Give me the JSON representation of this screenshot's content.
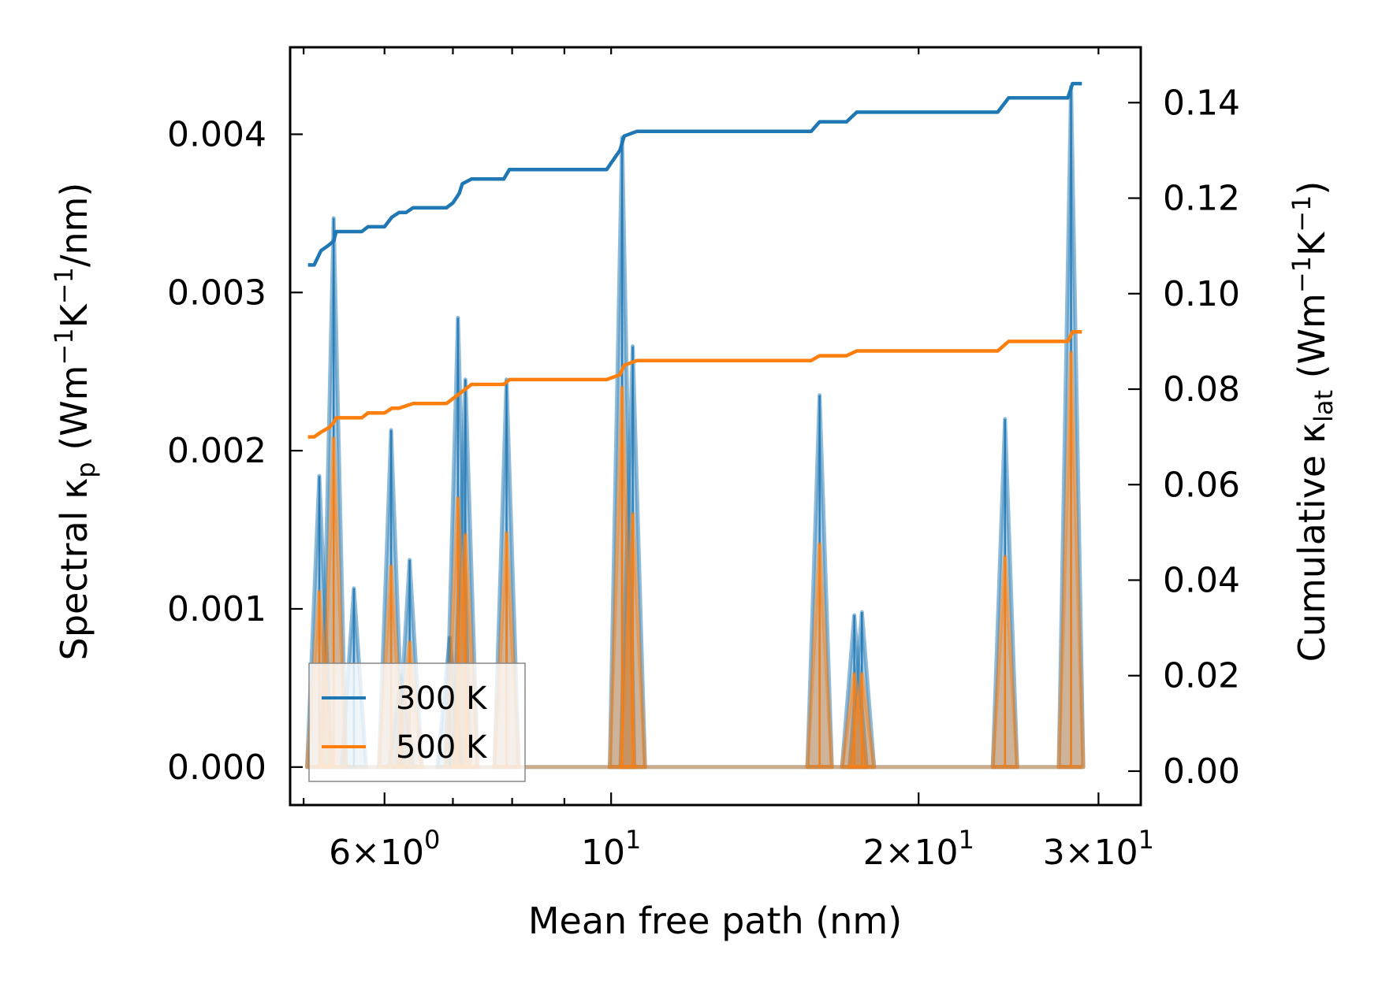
{
  "chart_data": {
    "type": "line",
    "xlabel": "Mean free path (nm)",
    "x_scale": "log",
    "xlim": [
      4.85,
      33.0
    ],
    "ylabel_left": {
      "prefix": "Spectral κ",
      "sub": "p",
      "rest": " (Wm",
      "sup1": "−1",
      "mid": "K",
      "sup2": "−1",
      "end": "/nm)"
    },
    "ylabel_right": {
      "prefix": "Cumulative κ",
      "sub": "lat",
      "rest": " (Wm",
      "sup1": "−1",
      "mid": "K",
      "sup2": "−1",
      "end": ")"
    },
    "ylim_left": [
      -0.00024,
      0.00455
    ],
    "ylim_right": [
      -0.0071,
      0.1516
    ],
    "x_tick_labels": [
      {
        "x": 6,
        "coef": "6",
        "times": "×",
        "base": "10",
        "exp": "0"
      },
      {
        "x": 10,
        "coef": "",
        "times": "",
        "base": "10",
        "exp": "1"
      },
      {
        "x": 20,
        "coef": "2",
        "times": "×",
        "base": "10",
        "exp": "1"
      },
      {
        "x": 30,
        "coef": "3",
        "times": "×",
        "base": "10",
        "exp": "1"
      }
    ],
    "x_minor_ticks": [
      5,
      7,
      8,
      9
    ],
    "x_top_ticks": [
      5,
      6,
      7,
      8,
      9,
      10,
      20,
      30
    ],
    "y_left_ticks": [
      {
        "v": 0.0,
        "label": "0.000"
      },
      {
        "v": 0.001,
        "label": "0.001"
      },
      {
        "v": 0.002,
        "label": "0.002"
      },
      {
        "v": 0.003,
        "label": "0.003"
      },
      {
        "v": 0.004,
        "label": "0.004"
      }
    ],
    "y_right_ticks": [
      {
        "v": 0.0,
        "label": "0.00"
      },
      {
        "v": 0.02,
        "label": "0.02"
      },
      {
        "v": 0.04,
        "label": "0.04"
      },
      {
        "v": 0.06,
        "label": "0.06"
      },
      {
        "v": 0.08,
        "label": "0.08"
      },
      {
        "v": 0.1,
        "label": "0.10"
      },
      {
        "v": 0.12,
        "label": "0.12"
      },
      {
        "v": 0.14,
        "label": "0.14"
      }
    ],
    "legend": {
      "placement": "lower-left",
      "entries": [
        "300 K",
        "500 K"
      ]
    },
    "series": [
      {
        "name": "300 K",
        "color": "#1f77b4",
        "spectral": [
          [
            5.18,
            0.00184
          ],
          [
            5.35,
            0.00347
          ],
          [
            5.6,
            0.00113
          ],
          [
            6.09,
            0.00213
          ],
          [
            6.23,
            0.00058
          ],
          [
            6.35,
            0.00131
          ],
          [
            6.95,
            0.00082
          ],
          [
            7.08,
            0.00284
          ],
          [
            7.2,
            0.00245
          ],
          [
            7.9,
            0.00245
          ],
          [
            10.25,
            0.00398
          ],
          [
            10.5,
            0.00266
          ],
          [
            16.0,
            0.00235
          ],
          [
            17.3,
            0.00096
          ],
          [
            17.6,
            0.00098
          ],
          [
            24.3,
            0.0022
          ],
          [
            28.2,
            0.0043
          ]
        ],
        "cumulative": [
          [
            5.05,
            0.106
          ],
          [
            5.12,
            0.106
          ],
          [
            5.2,
            0.109
          ],
          [
            5.28,
            0.11
          ],
          [
            5.35,
            0.111
          ],
          [
            5.38,
            0.113
          ],
          [
            5.7,
            0.113
          ],
          [
            5.78,
            0.114
          ],
          [
            6.0,
            0.114
          ],
          [
            6.1,
            0.116
          ],
          [
            6.2,
            0.117
          ],
          [
            6.3,
            0.117
          ],
          [
            6.4,
            0.118
          ],
          [
            6.9,
            0.118
          ],
          [
            7.0,
            0.119
          ],
          [
            7.1,
            0.121
          ],
          [
            7.15,
            0.123
          ],
          [
            7.3,
            0.124
          ],
          [
            7.85,
            0.124
          ],
          [
            7.95,
            0.126
          ],
          [
            9.9,
            0.126
          ],
          [
            10.2,
            0.13
          ],
          [
            10.3,
            0.133
          ],
          [
            10.6,
            0.134
          ],
          [
            15.7,
            0.134
          ],
          [
            16.0,
            0.136
          ],
          [
            17.0,
            0.136
          ],
          [
            17.2,
            0.137
          ],
          [
            17.4,
            0.138
          ],
          [
            23.9,
            0.138
          ],
          [
            24.5,
            0.141
          ],
          [
            28.0,
            0.141
          ],
          [
            28.3,
            0.144
          ],
          [
            28.9,
            0.144
          ]
        ]
      },
      {
        "name": "500 K",
        "color": "#ff7f0e",
        "spectral": [
          [
            5.18,
            0.00111
          ],
          [
            5.35,
            0.00208
          ],
          [
            6.09,
            0.00127
          ],
          [
            6.35,
            0.00079
          ],
          [
            7.08,
            0.0017
          ],
          [
            7.2,
            0.00147
          ],
          [
            7.9,
            0.00148
          ],
          [
            10.25,
            0.0024
          ],
          [
            10.5,
            0.0016
          ],
          [
            16.0,
            0.00141
          ],
          [
            17.3,
            0.00059
          ],
          [
            17.6,
            0.00059
          ],
          [
            24.3,
            0.00133
          ],
          [
            28.2,
            0.00262
          ]
        ],
        "cumulative": [
          [
            5.05,
            0.07
          ],
          [
            5.12,
            0.07
          ],
          [
            5.2,
            0.071
          ],
          [
            5.3,
            0.072
          ],
          [
            5.35,
            0.073
          ],
          [
            5.38,
            0.074
          ],
          [
            5.7,
            0.074
          ],
          [
            5.78,
            0.075
          ],
          [
            6.0,
            0.075
          ],
          [
            6.1,
            0.076
          ],
          [
            6.2,
            0.076
          ],
          [
            6.4,
            0.077
          ],
          [
            6.9,
            0.077
          ],
          [
            7.0,
            0.078
          ],
          [
            7.1,
            0.079
          ],
          [
            7.3,
            0.081
          ],
          [
            7.85,
            0.081
          ],
          [
            7.95,
            0.082
          ],
          [
            9.9,
            0.082
          ],
          [
            10.2,
            0.083
          ],
          [
            10.3,
            0.085
          ],
          [
            10.6,
            0.086
          ],
          [
            15.7,
            0.086
          ],
          [
            16.0,
            0.087
          ],
          [
            17.0,
            0.087
          ],
          [
            17.2,
            0.0875
          ],
          [
            17.4,
            0.088
          ],
          [
            23.9,
            0.088
          ],
          [
            24.5,
            0.09
          ],
          [
            28.0,
            0.09
          ],
          [
            28.3,
            0.092
          ],
          [
            28.9,
            0.092
          ]
        ]
      }
    ]
  }
}
